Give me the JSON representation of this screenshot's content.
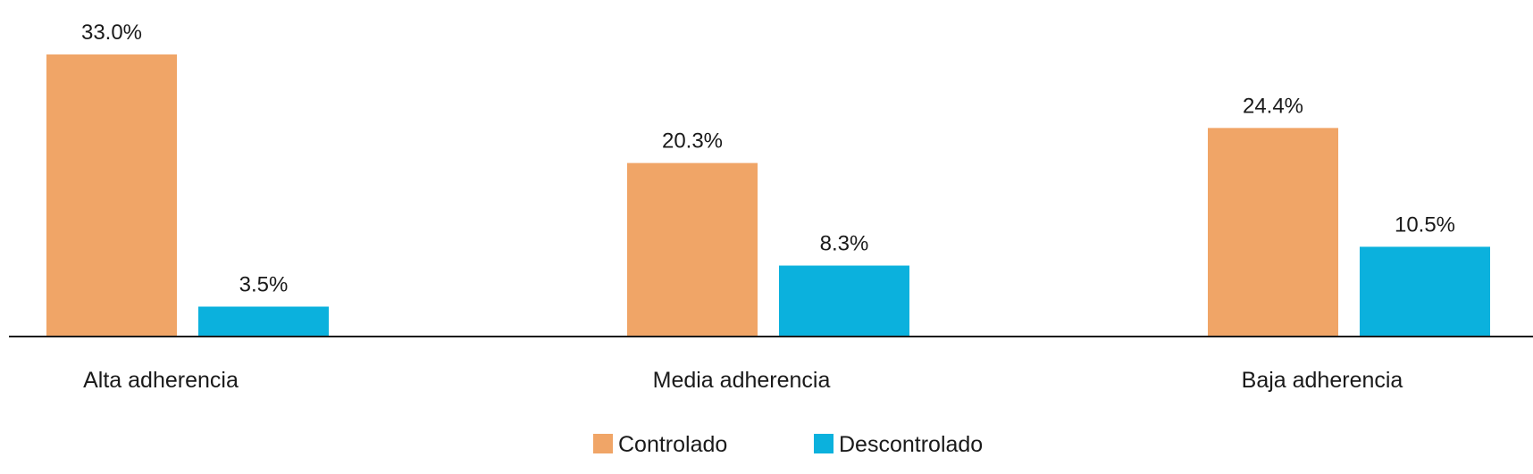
{
  "chart_data": {
    "type": "bar",
    "categories": [
      "Alta adherencia",
      "Media adherencia",
      "Baja adherencia"
    ],
    "series": [
      {
        "name": "Controlado",
        "values": [
          33.0,
          20.3,
          24.4
        ],
        "labels": [
          "33.0%",
          "20.3%",
          "24.4%"
        ],
        "color": "#F0A567"
      },
      {
        "name": "Descontrolado",
        "values": [
          3.5,
          8.3,
          10.5
        ],
        "labels": [
          "3.5%",
          "8.3%",
          "10.5%"
        ],
        "color": "#0BB1DD"
      }
    ],
    "ylim": [
      0,
      33
    ],
    "grid": false,
    "legend": "bottom-center",
    "axis_color": "#1a1a1a"
  }
}
